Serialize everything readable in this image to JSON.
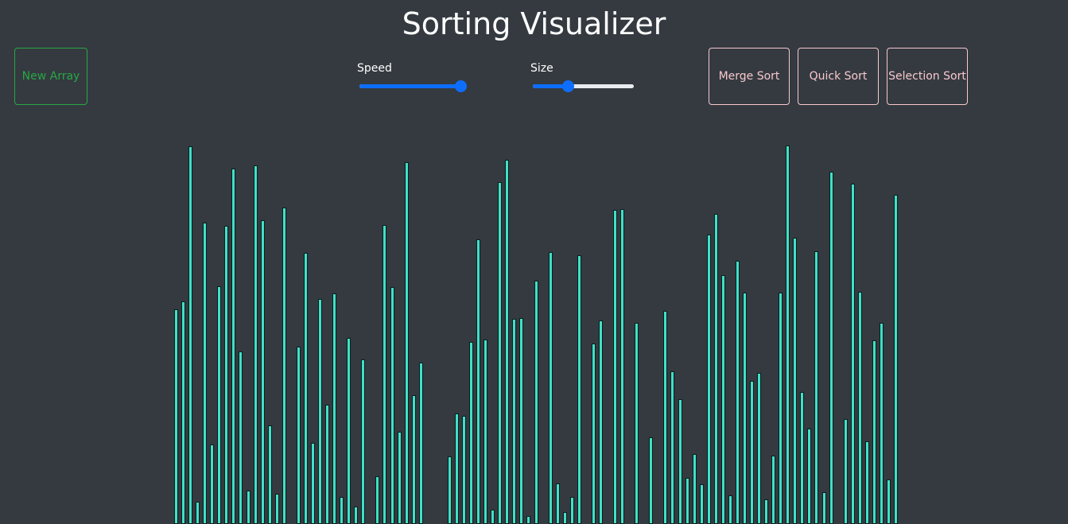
{
  "title": "Sorting Visualizer",
  "buttons": {
    "new_array": "New Array",
    "merge_sort": "Merge Sort",
    "quick_sort": "Quick Sort",
    "selection_sort": "Selection Sort"
  },
  "controls": {
    "speed": {
      "label": "Speed",
      "value": 1.0
    },
    "size": {
      "label": "Size",
      "value": 0.35
    }
  },
  "colors": {
    "background": "#343a40",
    "bar": "#40e0c8",
    "new_array": "#28a745",
    "sort_buttons": "#f8c8cd",
    "slider": "#0d6efd"
  },
  "array": [
    270,
    280,
    475,
    28,
    379,
    100,
    299,
    375,
    447,
    217,
    42,
    451,
    382,
    124,
    38,
    398,
    0,
    223,
    341,
    102,
    283,
    150,
    290,
    34,
    234,
    22,
    207,
    0,
    60,
    376,
    298,
    116,
    455,
    162,
    203,
    0,
    0,
    0,
    85,
    139,
    136,
    229,
    358,
    232,
    18,
    430,
    458,
    258,
    259,
    10,
    306,
    0,
    342,
    51,
    15,
    34,
    338,
    0,
    227,
    256,
    0,
    395,
    396,
    0,
    253,
    0,
    109,
    0,
    268,
    192,
    157,
    58,
    88,
    50,
    364,
    390,
    313,
    36,
    331,
    291,
    180,
    190,
    31,
    86,
    291,
    476,
    360,
    166,
    120,
    343,
    40,
    443,
    0,
    132,
    428,
    292,
    104,
    231,
    253,
    56,
    414,
    0,
    0,
    0,
    0
  ]
}
